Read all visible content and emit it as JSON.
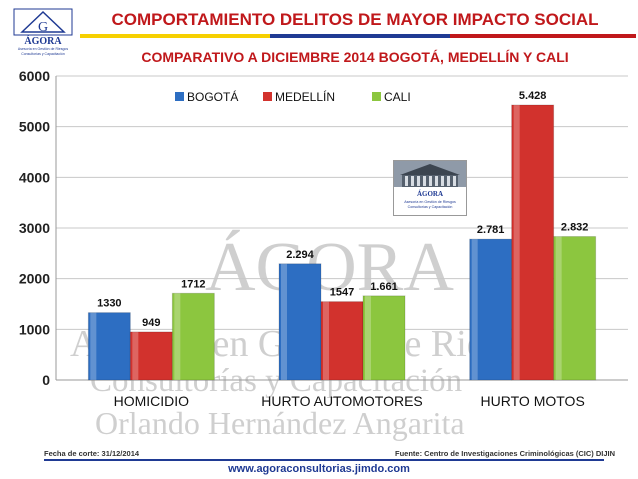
{
  "header": {
    "title": "COMPORTAMIENTO DELITOS DE MAYOR IMPACTO SOCIAL",
    "subtitle": "COMPARATIVO A DICIEMBRE 2014 BOGOTÁ, MEDELLÍN Y CALI"
  },
  "logo": {
    "name": "ÁGORA",
    "tagline_1": "Asesoría en Gestión de Riesgos",
    "tagline_2": "Consultorías y Capacitación"
  },
  "watermark": {
    "line_1": "ÁGORA",
    "line_2": "Asesoría en Gestión de Riesgos",
    "line_3": "Consultorías y Capacitación",
    "line_4": "Orlando Hernández Angarita"
  },
  "footer": {
    "cut_date": "Fecha de corte: 31/12/2014",
    "source": "Fuente: Centro de Investigaciones Criminológicas (CIC) DIJIN",
    "url": "www.agoraconsultorias.jimdo.com"
  },
  "colors": {
    "title": "#c0181b",
    "bogota": "#2d6ec2",
    "medellin": "#d2322d",
    "cali": "#8cc63f",
    "url": "#1f3a93"
  },
  "chart_data": {
    "type": "bar",
    "title": "COMPORTAMIENTO DELITOS DE MAYOR IMPACTO SOCIAL",
    "subtitle": "COMPARATIVO A DICIEMBRE 2014 BOGOTÁ, MEDELLÍN Y CALI",
    "xlabel": "",
    "ylabel": "",
    "categories": [
      "HOMICIDIO",
      "HURTO AUTOMOTORES",
      "HURTO MOTOS"
    ],
    "series": [
      {
        "name": "BOGOTÁ",
        "values": [
          1330,
          2294,
          2781
        ],
        "labels": [
          "1330",
          "2.294",
          "2.781"
        ]
      },
      {
        "name": "MEDELLÍN",
        "values": [
          949,
          1547,
          5428
        ],
        "labels": [
          "949",
          "1547",
          "5.428"
        ]
      },
      {
        "name": "CALI",
        "values": [
          1712,
          1661,
          2832
        ],
        "labels": [
          "1712",
          "1.661",
          "2.832"
        ]
      }
    ],
    "ylim": [
      0,
      6000
    ],
    "yticks": [
      "0",
      "1000",
      "2000",
      "3000",
      "4000",
      "5000",
      "6000"
    ],
    "grid": true,
    "legend": "top"
  }
}
